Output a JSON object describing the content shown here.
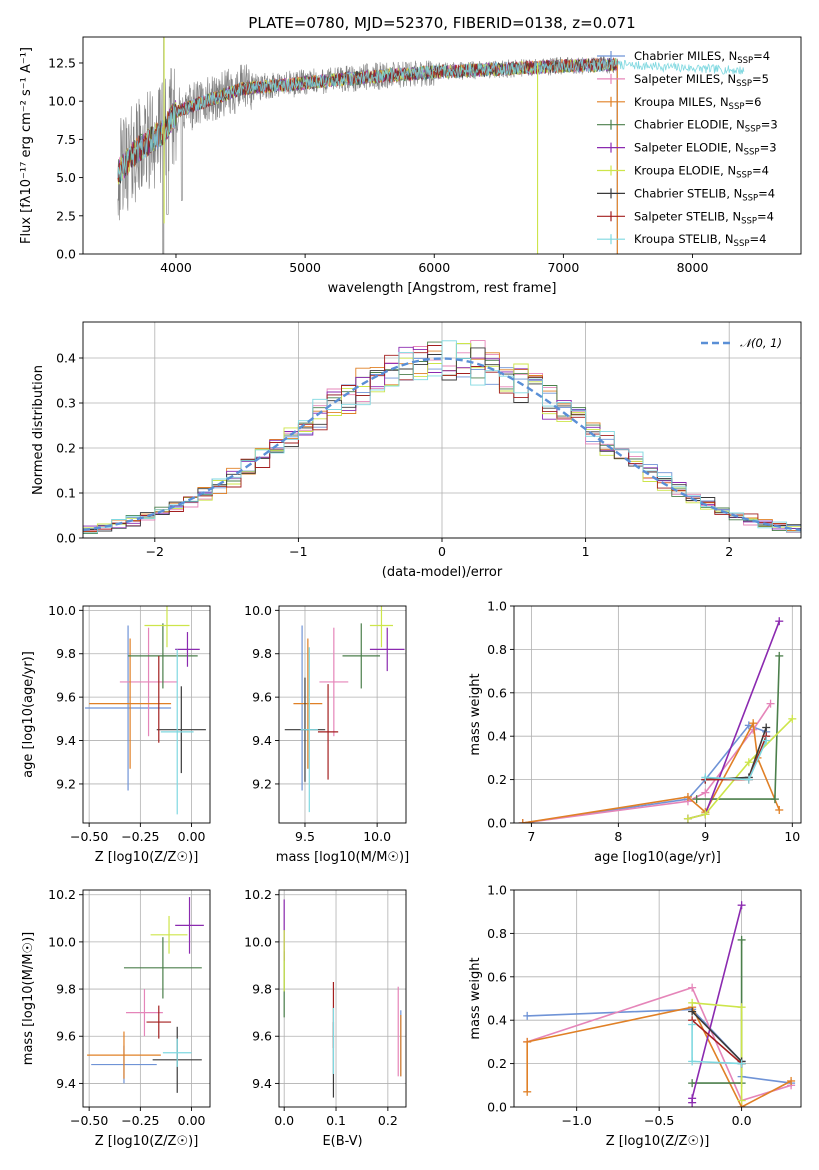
{
  "figure": {
    "title": "PLATE=0780, MJD=52370, FIBERID=0138, z=0.071"
  },
  "chart_data": [
    {
      "id": "spectrum",
      "type": "line",
      "title": "PLATE=0780, MJD=52370, FIBERID=0138, z=0.071",
      "xlabel": "wavelength [Angstrom, rest frame]",
      "ylabel": "Flux [fλ10⁻¹⁷ erg cm⁻² s⁻¹ A⁻¹]",
      "xlim": [
        3280,
        8840
      ],
      "ylim": [
        0,
        14.2
      ],
      "xticks": [
        4000,
        5000,
        6000,
        7000,
        8000
      ],
      "yticks": [
        0.0,
        2.5,
        5.0,
        7.5,
        10.0,
        12.5
      ],
      "grid": false,
      "legend_position": "right",
      "series": [
        {
          "name": "Chabrier MILES, N_SSP=4",
          "color": "#6f93d6"
        },
        {
          "name": "Salpeter MILES, N_SSP=5",
          "color": "#e585b9"
        },
        {
          "name": "Kroupa MILES, N_SSP=6",
          "color": "#e08026"
        },
        {
          "name": "Chabrier ELODIE, N_SSP=3",
          "color": "#4b7f4b"
        },
        {
          "name": "Salpeter ELODIE, N_SSP=3",
          "color": "#8b2ab0"
        },
        {
          "name": "Kroupa ELODIE, N_SSP=4",
          "color": "#cde54a"
        },
        {
          "name": "Chabrier STELIB, N_SSP=4",
          "color": "#3a3a3a"
        },
        {
          "name": "Salpeter STELIB, N_SSP=4",
          "color": "#a31f1f"
        },
        {
          "name": "Kroupa STELIB, N_SSP=4",
          "color": "#7fd8e0"
        }
      ],
      "data_color": "#808080",
      "continuum_anchors": [
        [
          3550,
          5.3
        ],
        [
          3700,
          6.8
        ],
        [
          3900,
          8.0
        ],
        [
          4000,
          9.3
        ],
        [
          4300,
          10.2
        ],
        [
          4500,
          10.8
        ],
        [
          5000,
          11.2
        ],
        [
          5500,
          11.6
        ],
        [
          6000,
          11.9
        ],
        [
          6500,
          12.1
        ],
        [
          7000,
          12.3
        ],
        [
          7400,
          12.4
        ],
        [
          8400,
          12.0
        ]
      ]
    },
    {
      "id": "residuals",
      "type": "line",
      "xlabel": "(data-model)/error",
      "ylabel": "Normed distribution",
      "xlim": [
        -2.5,
        2.5
      ],
      "ylim": [
        0,
        0.48
      ],
      "xticks": [
        -2,
        -1,
        0,
        1,
        2
      ],
      "yticks": [
        0.0,
        0.1,
        0.2,
        0.3,
        0.4
      ],
      "grid": true,
      "legend_position": "top-right",
      "gaussian_label": "𝒩(0, 1)",
      "gaussian_color": "#5a8fd6",
      "bin_width": 0.1
    },
    {
      "id": "age-vs-Z",
      "type": "scatter",
      "xlabel": "Z [log10(Z/Z☉)]",
      "ylabel": "age  [log10(age/yr)]",
      "xlim": [
        -0.53,
        0.09
      ],
      "ylim": [
        9.02,
        10.02
      ],
      "xticks": [
        -0.5,
        -0.25,
        0.0
      ],
      "yticks": [
        9.2,
        9.4,
        9.6,
        9.8,
        10.0
      ],
      "grid": true,
      "points": [
        {
          "series": "Chabrier MILES",
          "x": -0.31,
          "xerr": 0.21,
          "y": 9.55,
          "yerr": 0.38
        },
        {
          "series": "Salpeter MILES",
          "x": -0.21,
          "xerr": 0.14,
          "y": 9.67,
          "yerr": 0.25
        },
        {
          "series": "Kroupa MILES",
          "x": -0.3,
          "xerr": 0.2,
          "y": 9.57,
          "yerr": 0.3
        },
        {
          "series": "Chabrier ELODIE",
          "x": -0.14,
          "xerr": 0.17,
          "y": 9.79,
          "yerr": 0.15
        },
        {
          "series": "Salpeter ELODIE",
          "x": -0.02,
          "xerr": 0.06,
          "y": 9.82,
          "yerr": 0.08
        },
        {
          "series": "Kroupa ELODIE",
          "x": -0.12,
          "xerr": 0.11,
          "y": 9.93,
          "yerr": 0.1
        },
        {
          "series": "Chabrier STELIB",
          "x": -0.05,
          "xerr": 0.12,
          "y": 9.45,
          "yerr": 0.2
        },
        {
          "series": "Salpeter STELIB",
          "x": -0.16,
          "xerr": 0.0,
          "y": 9.59,
          "yerr": 0.2
        },
        {
          "series": "Kroupa STELIB",
          "x": -0.07,
          "xerr": 0.08,
          "y": 9.44,
          "yerr": 0.38
        }
      ]
    },
    {
      "id": "age-vs-mass",
      "type": "scatter",
      "xlabel": "mass [log10(M/M☉)]",
      "ylabel": "",
      "xlim": [
        9.32,
        10.2
      ],
      "ylim": [
        9.02,
        10.02
      ],
      "xticks": [
        9.5,
        10.0
      ],
      "yticks": [
        9.2,
        9.4,
        9.6,
        9.8,
        10.0
      ],
      "grid": true,
      "points": [
        {
          "series": "Chabrier MILES",
          "x": 9.48,
          "xerr": 0.0,
          "y": 9.55,
          "yerr": 0.38
        },
        {
          "series": "Salpeter MILES",
          "x": 9.7,
          "xerr": 0.1,
          "y": 9.67,
          "yerr": 0.25
        },
        {
          "series": "Kroupa MILES",
          "x": 9.52,
          "xerr": 0.1,
          "y": 9.57,
          "yerr": 0.3
        },
        {
          "series": "Chabrier ELODIE",
          "x": 9.89,
          "xerr": 0.13,
          "y": 9.79,
          "yerr": 0.15
        },
        {
          "series": "Salpeter ELODIE",
          "x": 10.07,
          "xerr": 0.12,
          "y": 9.82,
          "yerr": 0.1
        },
        {
          "series": "Kroupa ELODIE",
          "x": 10.03,
          "xerr": 0.08,
          "y": 9.93,
          "yerr": 0.1
        },
        {
          "series": "Chabrier STELIB",
          "x": 9.5,
          "xerr": 0.14,
          "y": 9.45,
          "yerr": 0.24
        },
        {
          "series": "Salpeter STELIB",
          "x": 9.66,
          "xerr": 0.07,
          "y": 9.44,
          "yerr": 0.22
        },
        {
          "series": "Kroupa STELIB",
          "x": 9.53,
          "xerr": 0.06,
          "y": 9.45,
          "yerr": 0.38
        }
      ]
    },
    {
      "id": "massweight-vs-age",
      "type": "line",
      "xlabel": "age  [log10(age/yr)]",
      "ylabel": "mass weight",
      "xlim": [
        6.8,
        10.1
      ],
      "ylim": [
        0,
        1.0
      ],
      "xticks": [
        7,
        8,
        9,
        10
      ],
      "yticks": [
        0.0,
        0.2,
        0.4,
        0.6,
        0.8,
        1.0
      ],
      "grid": true,
      "series": [
        {
          "name": "Chabrier MILES",
          "points": [
            [
              6.9,
              0.0
            ],
            [
              8.8,
              0.11
            ],
            [
              9.0,
              0.2
            ],
            [
              9.5,
              0.45
            ],
            [
              9.7,
              0.42
            ]
          ]
        },
        {
          "name": "Salpeter MILES",
          "points": [
            [
              6.9,
              0.0
            ],
            [
              8.8,
              0.1
            ],
            [
              9.0,
              0.14
            ],
            [
              9.55,
              0.43
            ],
            [
              9.75,
              0.55
            ]
          ]
        },
        {
          "name": "Kroupa MILES",
          "points": [
            [
              6.9,
              0.0
            ],
            [
              8.8,
              0.12
            ],
            [
              9.0,
              0.05
            ],
            [
              9.55,
              0.46
            ],
            [
              9.6,
              0.3
            ],
            [
              9.85,
              0.06
            ]
          ]
        },
        {
          "name": "Chabrier ELODIE",
          "points": [
            [
              8.9,
              0.11
            ],
            [
              9.8,
              0.11
            ],
            [
              9.85,
              0.77
            ]
          ]
        },
        {
          "name": "Salpeter ELODIE",
          "points": [
            [
              8.8,
              0.02
            ],
            [
              9.0,
              0.04
            ],
            [
              9.85,
              0.93
            ]
          ]
        },
        {
          "name": "Kroupa ELODIE",
          "points": [
            [
              8.8,
              0.02
            ],
            [
              9.0,
              0.04
            ],
            [
              9.5,
              0.28
            ],
            [
              10.0,
              0.48
            ]
          ]
        },
        {
          "name": "Chabrier STELIB",
          "points": [
            [
              9.0,
              0.2
            ],
            [
              9.5,
              0.21
            ],
            [
              9.7,
              0.44
            ]
          ]
        },
        {
          "name": "Salpeter STELIB",
          "points": [
            [
              9.0,
              0.2
            ],
            [
              9.5,
              0.2
            ],
            [
              9.7,
              0.4
            ]
          ]
        },
        {
          "name": "Kroupa STELIB",
          "points": [
            [
              9.0,
              0.21
            ],
            [
              9.5,
              0.2
            ],
            [
              9.7,
              0.38
            ]
          ]
        }
      ]
    },
    {
      "id": "mass-vs-Z",
      "type": "scatter",
      "xlabel": "Z [log10(Z/Z☉)]",
      "ylabel": "mass [log10(M/M☉)]",
      "xlim": [
        -0.53,
        0.09
      ],
      "ylim": [
        9.3,
        10.22
      ],
      "xticks": [
        -0.5,
        -0.25,
        0.0
      ],
      "yticks": [
        9.4,
        9.6,
        9.8,
        10.0,
        10.2
      ],
      "grid": true,
      "points": [
        {
          "series": "Chabrier MILES",
          "x": -0.33,
          "xerr": 0.16,
          "y": 9.48,
          "yerr": 0.08
        },
        {
          "series": "Salpeter MILES",
          "x": -0.23,
          "xerr": 0.09,
          "y": 9.7,
          "yerr": 0.1
        },
        {
          "series": "Kroupa MILES",
          "x": -0.33,
          "xerr": 0.18,
          "y": 9.52,
          "yerr": 0.1
        },
        {
          "series": "Chabrier ELODIE",
          "x": -0.14,
          "xerr": 0.19,
          "y": 9.89,
          "yerr": 0.13
        },
        {
          "series": "Salpeter ELODIE",
          "x": -0.01,
          "xerr": 0.07,
          "y": 10.07,
          "yerr": 0.12
        },
        {
          "series": "Kroupa ELODIE",
          "x": -0.11,
          "xerr": 0.09,
          "y": 10.03,
          "yerr": 0.08
        },
        {
          "series": "Chabrier STELIB",
          "x": -0.07,
          "xerr": 0.12,
          "y": 9.5,
          "yerr": 0.14
        },
        {
          "series": "Salpeter STELIB",
          "x": -0.16,
          "xerr": 0.06,
          "y": 9.66,
          "yerr": 0.07
        },
        {
          "series": "Kroupa STELIB",
          "x": -0.07,
          "xerr": 0.07,
          "y": 9.53,
          "yerr": 0.06
        }
      ]
    },
    {
      "id": "mass-vs-EBV",
      "type": "scatter",
      "xlabel": "E(B-V)",
      "ylabel": "",
      "xlim": [
        -0.01,
        0.235
      ],
      "ylim": [
        9.3,
        10.22
      ],
      "xticks": [
        0.0,
        0.1,
        0.2
      ],
      "yticks": [
        9.4,
        9.6,
        9.8,
        10.0,
        10.2
      ],
      "grid": true,
      "points": [
        {
          "series": "Chabrier MILES",
          "x": 0.225,
          "xerr": 0.0,
          "y": 9.57,
          "yerr": 0.14
        },
        {
          "series": "Salpeter MILES",
          "x": 0.22,
          "xerr": 0.0,
          "y": 9.62,
          "yerr": 0.19
        },
        {
          "series": "Kroupa MILES",
          "x": 0.225,
          "xerr": 0.0,
          "y": 9.56,
          "yerr": 0.13
        },
        {
          "series": "Chabrier ELODIE",
          "x": 0.0,
          "xerr": 0.0,
          "y": 9.82,
          "yerr": 0.14
        },
        {
          "series": "Salpeter ELODIE",
          "x": 0.0,
          "xerr": 0.0,
          "y": 10.05,
          "yerr": 0.13
        },
        {
          "series": "Kroupa ELODIE",
          "x": 0.0,
          "xerr": 0.0,
          "y": 9.92,
          "yerr": 0.13
        },
        {
          "series": "Chabrier STELIB",
          "x": 0.095,
          "xerr": 0.0,
          "y": 9.5,
          "yerr": 0.16
        },
        {
          "series": "Salpeter STELIB",
          "x": 0.095,
          "xerr": 0.0,
          "y": 9.69,
          "yerr": 0.14
        },
        {
          "series": "Kroupa STELIB",
          "x": 0.095,
          "xerr": 0.0,
          "y": 9.58,
          "yerr": 0.14
        }
      ]
    },
    {
      "id": "massweight-vs-Z",
      "type": "line",
      "xlabel": "Z [log10(Z/Z☉)]",
      "ylabel": "mass weight",
      "xlim": [
        -1.38,
        0.36
      ],
      "ylim": [
        0,
        1.0
      ],
      "xticks": [
        -1.0,
        -0.5,
        0.0
      ],
      "yticks": [
        0.0,
        0.2,
        0.4,
        0.6,
        0.8,
        1.0
      ],
      "grid": true,
      "series": [
        {
          "name": "Chabrier MILES",
          "points": [
            [
              -1.3,
              0.42
            ],
            [
              -0.3,
              0.45
            ],
            [
              0.0,
              0.21
            ],
            [
              0.0,
              0.14
            ],
            [
              0.3,
              0.11
            ]
          ]
        },
        {
          "name": "Salpeter MILES",
          "points": [
            [
              -1.3,
              0.3
            ],
            [
              -0.3,
              0.55
            ],
            [
              0.0,
              0.03
            ],
            [
              0.3,
              0.1
            ]
          ]
        },
        {
          "name": "Kroupa MILES",
          "points": [
            [
              -1.3,
              0.07
            ],
            [
              -1.3,
              0.3
            ],
            [
              -0.3,
              0.46
            ],
            [
              0.0,
              0.0
            ],
            [
              0.3,
              0.12
            ]
          ]
        },
        {
          "name": "Chabrier ELODIE",
          "points": [
            [
              -0.3,
              0.11
            ],
            [
              0.0,
              0.11
            ],
            [
              0.0,
              0.77
            ]
          ]
        },
        {
          "name": "Salpeter ELODIE",
          "points": [
            [
              -0.3,
              0.02
            ],
            [
              -0.3,
              0.04
            ],
            [
              0.0,
              0.93
            ]
          ]
        },
        {
          "name": "Kroupa ELODIE",
          "points": [
            [
              -0.3,
              0.48
            ],
            [
              0.0,
              0.46
            ],
            [
              0.0,
              0.03
            ]
          ]
        },
        {
          "name": "Chabrier STELIB",
          "points": [
            [
              -0.3,
              0.44
            ],
            [
              0.0,
              0.21
            ],
            [
              0.0,
              0.2
            ]
          ]
        },
        {
          "name": "Salpeter STELIB",
          "points": [
            [
              -0.3,
              0.4
            ],
            [
              0.0,
              0.2
            ]
          ]
        },
        {
          "name": "Kroupa STELIB",
          "points": [
            [
              -0.3,
              0.38
            ],
            [
              -0.3,
              0.21
            ],
            [
              0.0,
              0.2
            ]
          ]
        }
      ]
    }
  ]
}
